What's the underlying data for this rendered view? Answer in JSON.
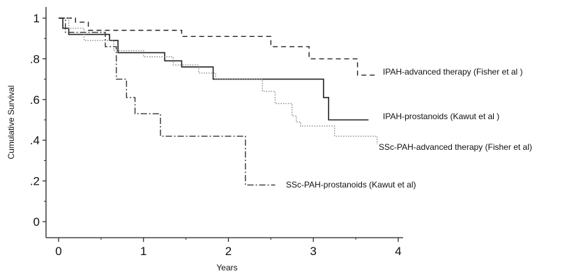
{
  "chart_data": {
    "type": "line",
    "step": true,
    "xlabel": "Years",
    "ylabel": "Cumulative Survival",
    "xlim": [
      0,
      4
    ],
    "ylim": [
      0,
      1
    ],
    "x_ticks": [
      0,
      1,
      2,
      3,
      4
    ],
    "x_tick_labels": [
      "0",
      "1",
      "2",
      "3",
      "4"
    ],
    "y_ticks": [
      0,
      0.2,
      0.4,
      0.6,
      0.8,
      1
    ],
    "y_tick_labels": [
      "0",
      ".2",
      ".4",
      ".6",
      ".8",
      "1"
    ],
    "grid": false,
    "legend": "inline labels at line ends",
    "series": [
      {
        "name": "IPAH-advanced therapy (Fisher et al )",
        "style": "dashed",
        "color": "#222222",
        "x": [
          0,
          0.2,
          0.35,
          1.45,
          2.5,
          2.95,
          3.52,
          3.75
        ],
        "y": [
          1.0,
          0.98,
          0.94,
          0.91,
          0.86,
          0.8,
          0.72,
          0.72
        ]
      },
      {
        "name": "IPAH-prostanoids (Kawut et al )",
        "style": "solid",
        "color": "#222222",
        "x": [
          0,
          0.05,
          0.12,
          0.6,
          0.7,
          1.25,
          1.45,
          1.82,
          3.12,
          3.18,
          3.65
        ],
        "y": [
          1.0,
          0.95,
          0.92,
          0.89,
          0.83,
          0.79,
          0.76,
          0.7,
          0.61,
          0.5,
          0.5
        ]
      },
      {
        "name": "SSc-PAH-advanced therapy (Fisher et al)",
        "style": "dotted",
        "color": "#888888",
        "x": [
          0,
          0.12,
          0.3,
          0.6,
          0.65,
          1.0,
          1.35,
          1.65,
          1.85,
          2.4,
          2.55,
          2.75,
          2.8,
          2.85,
          3.25,
          3.75
        ],
        "y": [
          1.0,
          0.95,
          0.89,
          0.89,
          0.84,
          0.81,
          0.77,
          0.73,
          0.7,
          0.64,
          0.58,
          0.52,
          0.49,
          0.47,
          0.42,
          0.38
        ]
      },
      {
        "name": "SSc-PAH-prostanoids (Kawut et al)",
        "style": "dashdot",
        "color": "#333333",
        "x": [
          0,
          0.08,
          0.18,
          0.55,
          0.68,
          0.8,
          0.9,
          1.2,
          2.2,
          2.55
        ],
        "y": [
          1.0,
          0.93,
          0.93,
          0.86,
          0.7,
          0.61,
          0.53,
          0.42,
          0.18,
          0.18
        ]
      }
    ]
  }
}
